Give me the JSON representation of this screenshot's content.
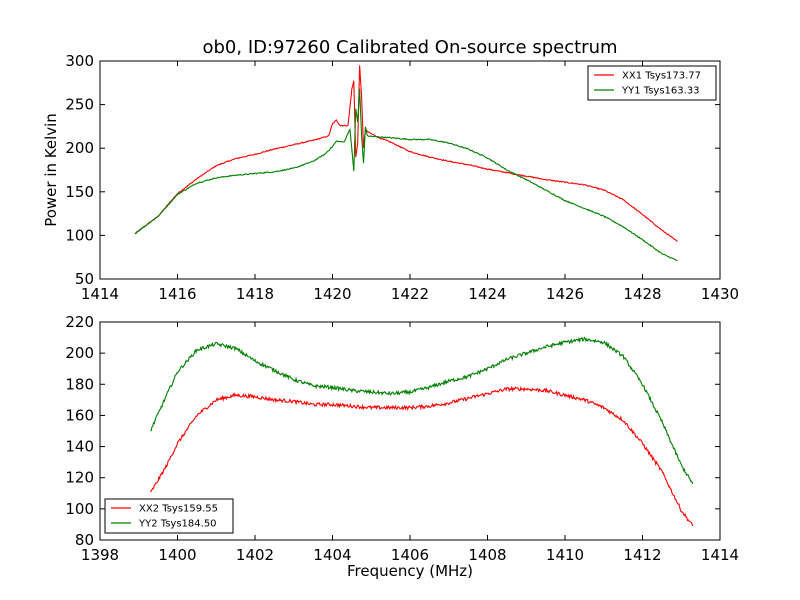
{
  "chart_data": [
    {
      "type": "line",
      "title": "ob0, ID:97260 Calibrated On-source spectrum",
      "xlabel": "",
      "ylabel": "Power in Kelvin",
      "xlim": [
        1414,
        1430
      ],
      "ylim": [
        50,
        300
      ],
      "xticks": [
        "1414",
        "1416",
        "1418",
        "1420",
        "1422",
        "1424",
        "1426",
        "1428",
        "1430"
      ],
      "yticks": [
        "50",
        "100",
        "150",
        "200",
        "250",
        "300"
      ],
      "legend_position": "top-right",
      "series": [
        {
          "name": "XX1 Tsys173.77",
          "color": "#ff0000",
          "points": [
            [
              1414.9,
              102
            ],
            [
              1415.5,
              122
            ],
            [
              1416.0,
              148
            ],
            [
              1416.5,
              165
            ],
            [
              1417.0,
              180
            ],
            [
              1417.5,
              188
            ],
            [
              1418.0,
              193
            ],
            [
              1418.5,
              199
            ],
            [
              1419.0,
              204
            ],
            [
              1419.5,
              209
            ],
            [
              1419.9,
              214
            ],
            [
              1420.0,
              228
            ],
            [
              1420.1,
              232
            ],
            [
              1420.2,
              226
            ],
            [
              1420.4,
              226
            ],
            [
              1420.5,
              268
            ],
            [
              1420.55,
              277
            ],
            [
              1420.6,
              190
            ],
            [
              1420.65,
              205
            ],
            [
              1420.7,
              295
            ],
            [
              1420.75,
              260
            ],
            [
              1420.8,
              200
            ],
            [
              1420.85,
              222
            ],
            [
              1420.9,
              219
            ],
            [
              1421.2,
              212
            ],
            [
              1421.5,
              207
            ],
            [
              1422.0,
              196
            ],
            [
              1422.5,
              190
            ],
            [
              1423.0,
              185
            ],
            [
              1423.5,
              181
            ],
            [
              1424.0,
              176
            ],
            [
              1424.5,
              172
            ],
            [
              1425.0,
              168
            ],
            [
              1425.5,
              164
            ],
            [
              1426.0,
              161
            ],
            [
              1426.5,
              158
            ],
            [
              1427.0,
              152
            ],
            [
              1427.5,
              141
            ],
            [
              1428.0,
              124
            ],
            [
              1428.5,
              106
            ],
            [
              1428.9,
              93
            ]
          ]
        },
        {
          "name": "YY1 Tsys163.33",
          "color": "#008000",
          "points": [
            [
              1414.9,
              102
            ],
            [
              1415.5,
              122
            ],
            [
              1416.0,
              147
            ],
            [
              1416.5,
              160
            ],
            [
              1417.0,
              166
            ],
            [
              1417.5,
              169
            ],
            [
              1418.0,
              171
            ],
            [
              1418.5,
              173
            ],
            [
              1419.0,
              177
            ],
            [
              1419.5,
              185
            ],
            [
              1419.8,
              193
            ],
            [
              1420.0,
              202
            ],
            [
              1420.1,
              208
            ],
            [
              1420.3,
              207
            ],
            [
              1420.45,
              222
            ],
            [
              1420.55,
              174
            ],
            [
              1420.6,
              245
            ],
            [
              1420.65,
              230
            ],
            [
              1420.7,
              268
            ],
            [
              1420.75,
              215
            ],
            [
              1420.8,
              183
            ],
            [
              1420.85,
              224
            ],
            [
              1420.9,
              214
            ],
            [
              1421.5,
              212
            ],
            [
              1422.0,
              210
            ],
            [
              1422.5,
              210
            ],
            [
              1423.0,
              206
            ],
            [
              1423.5,
              199
            ],
            [
              1424.0,
              189
            ],
            [
              1424.5,
              175
            ],
            [
              1425.0,
              164
            ],
            [
              1425.5,
              152
            ],
            [
              1426.0,
              140
            ],
            [
              1426.5,
              131
            ],
            [
              1427.0,
              122
            ],
            [
              1427.5,
              110
            ],
            [
              1428.0,
              95
            ],
            [
              1428.5,
              79
            ],
            [
              1428.9,
              71
            ]
          ]
        }
      ]
    },
    {
      "type": "line",
      "title": "",
      "xlabel": "Frequency (MHz)",
      "ylabel": "",
      "xlim": [
        1398,
        1414
      ],
      "ylim": [
        80,
        220
      ],
      "xticks": [
        "1398",
        "1400",
        "1402",
        "1404",
        "1406",
        "1408",
        "1410",
        "1412",
        "1414"
      ],
      "yticks": [
        "80",
        "100",
        "120",
        "140",
        "160",
        "180",
        "200",
        "220"
      ],
      "legend_position": "bottom-left",
      "series": [
        {
          "name": "XX2 Tsys159.55",
          "color": "#ff0000",
          "points": [
            [
              1399.3,
              110
            ],
            [
              1399.7,
              127
            ],
            [
              1400.0,
              142
            ],
            [
              1400.5,
              160
            ],
            [
              1401.0,
              170
            ],
            [
              1401.5,
              173
            ],
            [
              1402.0,
              172
            ],
            [
              1402.5,
              170
            ],
            [
              1403.0,
              169
            ],
            [
              1403.5,
              167
            ],
            [
              1404.0,
              167
            ],
            [
              1404.5,
              166
            ],
            [
              1405.0,
              165
            ],
            [
              1405.5,
              165
            ],
            [
              1406.0,
              165
            ],
            [
              1406.5,
              166
            ],
            [
              1407.0,
              168
            ],
            [
              1407.5,
              171
            ],
            [
              1408.0,
              174
            ],
            [
              1408.5,
              177
            ],
            [
              1409.0,
              177
            ],
            [
              1409.5,
              176
            ],
            [
              1410.0,
              173
            ],
            [
              1410.5,
              170
            ],
            [
              1411.0,
              165
            ],
            [
              1411.5,
              157
            ],
            [
              1412.0,
              142
            ],
            [
              1412.5,
              124
            ],
            [
              1413.0,
              99
            ],
            [
              1413.3,
              89
            ]
          ]
        },
        {
          "name": "YY2 Tsys184.50",
          "color": "#008000",
          "points": [
            [
              1399.3,
              150
            ],
            [
              1399.7,
              172
            ],
            [
              1400.0,
              188
            ],
            [
              1400.5,
              202
            ],
            [
              1401.0,
              206
            ],
            [
              1401.5,
              203
            ],
            [
              1402.0,
              195
            ],
            [
              1402.5,
              189
            ],
            [
              1403.0,
              183
            ],
            [
              1403.5,
              179
            ],
            [
              1404.0,
              178
            ],
            [
              1404.5,
              176
            ],
            [
              1405.0,
              175
            ],
            [
              1405.5,
              174
            ],
            [
              1406.0,
              175
            ],
            [
              1406.5,
              178
            ],
            [
              1407.0,
              182
            ],
            [
              1407.5,
              185
            ],
            [
              1408.0,
              190
            ],
            [
              1408.5,
              196
            ],
            [
              1409.0,
              200
            ],
            [
              1409.5,
              204
            ],
            [
              1410.0,
              207
            ],
            [
              1410.5,
              209
            ],
            [
              1411.0,
              207
            ],
            [
              1411.5,
              198
            ],
            [
              1412.0,
              180
            ],
            [
              1412.5,
              156
            ],
            [
              1413.0,
              128
            ],
            [
              1413.3,
              116
            ]
          ]
        }
      ]
    }
  ]
}
